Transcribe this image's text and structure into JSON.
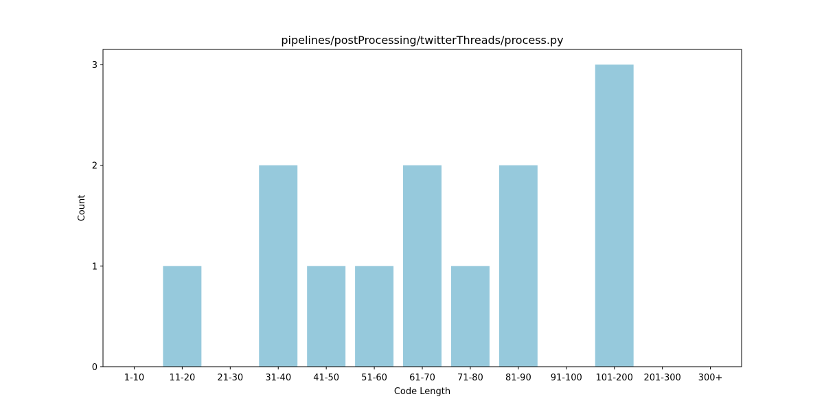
{
  "chart_data": {
    "type": "bar",
    "title": "pipelines/postProcessing/twitterThreads/process.py",
    "xlabel": "Code Length",
    "ylabel": "Count",
    "categories": [
      "1-10",
      "11-20",
      "21-30",
      "31-40",
      "41-50",
      "51-60",
      "61-70",
      "71-80",
      "81-90",
      "91-100",
      "101-200",
      "201-300",
      "300+"
    ],
    "values": [
      0,
      1,
      0,
      2,
      1,
      1,
      2,
      1,
      2,
      0,
      3,
      0,
      0
    ],
    "ylim": [
      0,
      3.15
    ],
    "yticks": [
      0,
      1,
      2,
      3
    ],
    "bar_color": "#96c9dc",
    "grid": false,
    "legend": "none"
  }
}
